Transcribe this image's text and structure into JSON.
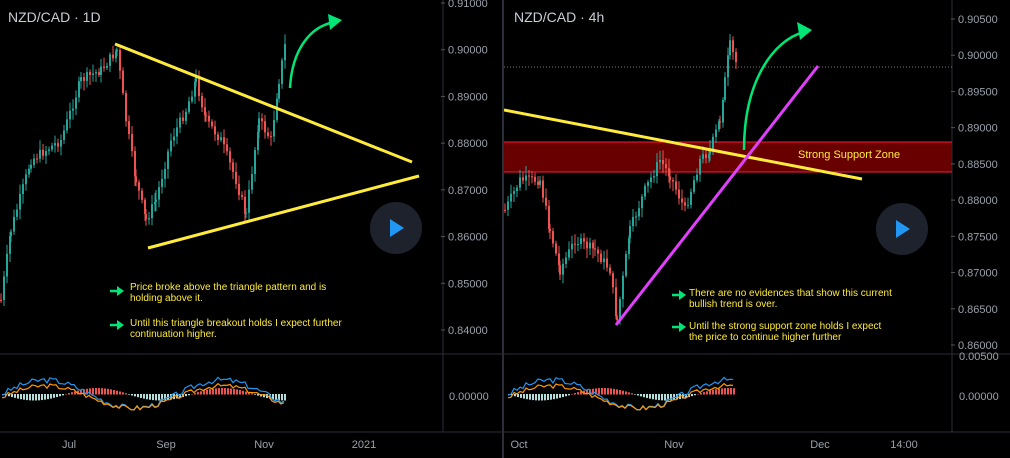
{
  "charts": [
    {
      "id": "left",
      "title": "NZD/CAD · 1D",
      "type": "candlestick",
      "y_axis": {
        "ticks": [
          "0.91000",
          "0.90000",
          "0.89000",
          "0.88000",
          "0.87000",
          "0.86000",
          "0.85000",
          "0.84000"
        ]
      },
      "x_axis": {
        "ticks": [
          "Jul",
          "Sep",
          "Nov",
          "2021"
        ]
      },
      "indicator_axis": {
        "ticks": [
          "0.00000"
        ]
      },
      "notes": [
        "Price broke above the triangle pattern and is\nholding above it.",
        "Until this triangle breakout holds I expect further\ncontinuation higher."
      ]
    },
    {
      "id": "right",
      "title": "NZD/CAD · 4h",
      "type": "candlestick",
      "y_axis": {
        "ticks": [
          "0.90500",
          "0.90000",
          "0.89500",
          "0.89000",
          "0.88500",
          "0.88000",
          "0.87500",
          "0.87000",
          "0.86500",
          "0.86000"
        ]
      },
      "x_axis": {
        "ticks": [
          "Oct",
          "Nov",
          "Dec",
          "14:00"
        ]
      },
      "indicator_axis": {
        "ticks": [
          "0.00500",
          "0.00000"
        ]
      },
      "zone_label": "Strong Support Zone",
      "notes": [
        "There are no evidences that show this current\nbullish trend is over.",
        "Until the strong support zone holds I expect\nthe price to continue higher further"
      ]
    }
  ],
  "colors": {
    "background": "#000000",
    "up": "#26a69a",
    "down": "#ef5350",
    "triangle": "#ffeb3b",
    "trendline_pink": "#e040fb",
    "arrow": "#00e676",
    "zone_fill": "#8b0000",
    "macd": "#2196f3",
    "signal": "#ff9800"
  },
  "icons": {
    "play": "play-icon",
    "arrow": "arrow-right-icon"
  }
}
